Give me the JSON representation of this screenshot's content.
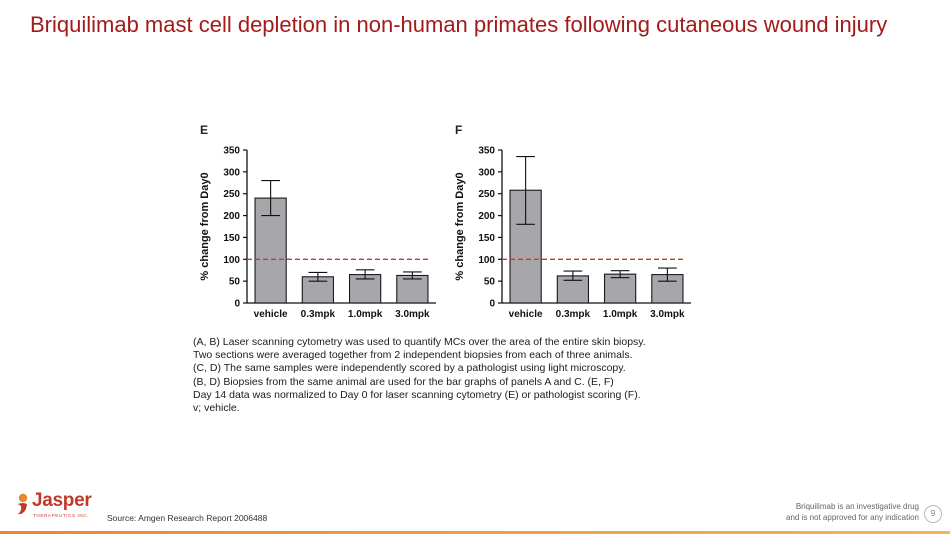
{
  "title": "Briquilimab mast cell depletion in non-human primates following cutaneous wound injury",
  "chart_data": [
    {
      "type": "bar",
      "panel": "E",
      "categories": [
        "vehicle",
        "0.3mpk",
        "1.0mpk",
        "3.0mpk"
      ],
      "values": [
        240,
        60,
        65,
        63
      ],
      "error_low": [
        200,
        50,
        55,
        55
      ],
      "error_high": [
        280,
        70,
        76,
        71
      ],
      "reference_line": 100,
      "ylabel": "% change from Day0",
      "ylim": [
        0,
        350
      ],
      "yticks": [
        "0",
        "50",
        "100",
        "150",
        "200",
        "250",
        "300",
        "350"
      ]
    },
    {
      "type": "bar",
      "panel": "F",
      "categories": [
        "vehicle",
        "0.3mpk",
        "1.0mpk",
        "3.0mpk"
      ],
      "values": [
        258,
        62,
        66,
        65
      ],
      "error_low": [
        180,
        52,
        58,
        50
      ],
      "error_high": [
        335,
        73,
        74,
        80
      ],
      "reference_line": 100,
      "ylabel": "% change from Day0",
      "ylim": [
        0,
        350
      ],
      "yticks": [
        "0",
        "50",
        "100",
        "150",
        "200",
        "250",
        "300",
        "350"
      ]
    }
  ],
  "caption_lines": [
    "(A, B) Laser scanning cytometry was used to quantify MCs over the area of the entire skin biopsy.",
    "Two sections were averaged together from 2 independent biopsies from each of three animals.",
    "(C, D)  The same samples were independently scored by a pathologist using light microscopy.",
    "(B, D)  Biopsies from the same animal are used for the bar graphs of panels A and C.  (E, F)",
    "Day 14 data was normalized to Day 0 for laser scanning cytometry (E) or pathologist scoring (F).",
    "v; vehicle."
  ],
  "footer": {
    "source": "Source: Amgen Research Report 2006488",
    "disclaimer_line1": "Briquilimab is an investigative drug",
    "disclaimer_line2": "and is not approved for any indication",
    "page_number": "9",
    "logo_text": "Jasper",
    "logo_subtext": "THERAPEUTICS INC."
  },
  "colors": {
    "title": "#a31a1a",
    "bar_fill": "#a7a6ab",
    "bar_stroke": "#1a1a1a",
    "reference_line": "#d2382a"
  }
}
